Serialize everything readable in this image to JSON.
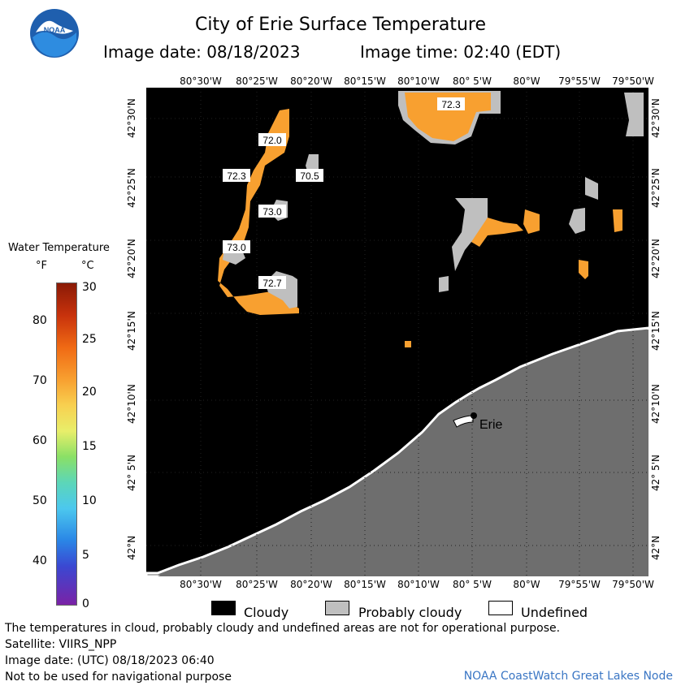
{
  "header": {
    "title": "City of Erie Surface Temperature",
    "image_date": "Image date: 08/18/2023",
    "image_time": "Image time: 02:40 (EDT)"
  },
  "logo": {
    "text": "NOAA",
    "icon": "noaa-logo"
  },
  "map": {
    "top_lon_labels": [
      "80°30'W",
      "80°25'W",
      "80°20'W",
      "80°15'W",
      "80°10'W",
      "80° 5'W",
      "80°W",
      "79°55'W",
      "79°50'W"
    ],
    "bottom_lon_labels": [
      "80°30'W",
      "80°25'W",
      "80°20'W",
      "80°15'W",
      "80°10'W",
      "80° 5'W",
      "80°W",
      "79°55'W",
      "79°50'W"
    ],
    "left_lat_labels": [
      "42°30'N",
      "42°25'N",
      "42°20'N",
      "42°15'N",
      "42°10'N",
      "42° 5'N",
      "42°N"
    ],
    "right_lat_labels": [
      "42°30'N",
      "42°25'N",
      "42°20'N",
      "42°15'N",
      "42°10'N",
      "42° 5'N",
      "42°N"
    ],
    "temp_labels": [
      "72.3",
      "72.0",
      "72.3",
      "70.5",
      "73.0",
      "73.0",
      "72.7"
    ],
    "city_label": "Erie",
    "colors": {
      "cloud": "#000000",
      "land": "#6e6e6e",
      "probably_cloudy": "#bfbfbf",
      "warm_water": "#f8a030"
    }
  },
  "colorbar": {
    "title": "Water Temperature",
    "unit_f": "°F",
    "unit_c": "°C",
    "f_labels": [
      "80",
      "70",
      "60",
      "50",
      "40"
    ],
    "c_labels": [
      "30",
      "25",
      "20",
      "15",
      "10",
      "5",
      "0"
    ]
  },
  "legend": {
    "cloudy": "Cloudy",
    "probably_cloudy": "Probably cloudy",
    "undefined": "Undefined"
  },
  "footer": {
    "line1": "The temperatures in cloud, probably cloudy and undefined areas are not for operational purpose.",
    "line2": "Satellite: VIIRS_NPP",
    "line3": "Image date: (UTC) 08/18/2023  06:40",
    "line4": "Not to be used for navigational purpose",
    "credit": "NOAA CoastWatch Great Lakes Node"
  }
}
